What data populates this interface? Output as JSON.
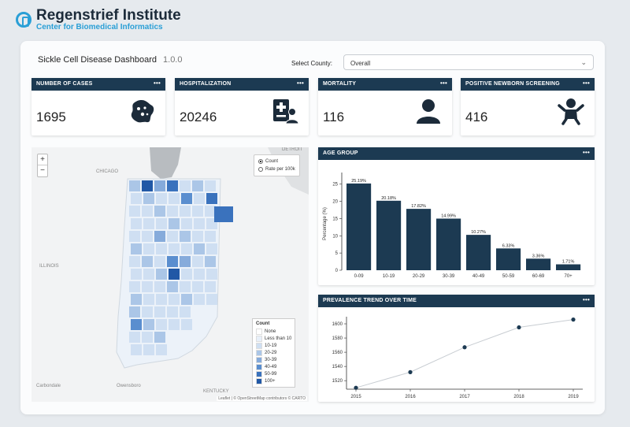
{
  "brand": {
    "title": "Regenstrief Institute",
    "subtitle": "Center for Biomedical Informatics",
    "accent": "#2a9fd6",
    "header_color": "#1c3a52"
  },
  "dashboard": {
    "title": "Sickle Cell Disease Dashboard",
    "version": "1.0.0"
  },
  "county": {
    "label": "Select County:",
    "value": "Overall"
  },
  "stats": [
    {
      "title": "NUMBER OF CASES",
      "value": "1695",
      "icon": "cell-icon"
    },
    {
      "title": "HOSPITALIZATION",
      "value": "20246",
      "icon": "hospital-bed-icon"
    },
    {
      "title": "MORTALITY",
      "value": "116",
      "icon": "person-icon"
    },
    {
      "title": "POSITIVE NEWBORN SCREENING",
      "value": "416",
      "icon": "baby-icon"
    }
  ],
  "menu_dots": "•••",
  "map": {
    "zoom_in": "+",
    "zoom_out": "−",
    "options": [
      "Count",
      "Rate per 100k"
    ],
    "selected": "Count",
    "legend_title": "Count",
    "legend": [
      {
        "label": "None",
        "color": "#ffffff"
      },
      {
        "label": "Less than 10",
        "color": "#e8f0fa"
      },
      {
        "label": "10-19",
        "color": "#cfdff2"
      },
      {
        "label": "20-29",
        "color": "#abc6e7"
      },
      {
        "label": "30-39",
        "color": "#86abdb"
      },
      {
        "label": "40-49",
        "color": "#5a8ecf"
      },
      {
        "label": "50-99",
        "color": "#3a72bd"
      },
      {
        "label": "100+",
        "color": "#2158a6"
      }
    ],
    "labels": {
      "chicago": "CHICAGO",
      "illinois": "ILLINOIS",
      "kentucky": "KENTUCKY",
      "detroit": "DETROIT",
      "carbondale": "Carbondale",
      "owensboro": "Owensboro"
    },
    "attribution": "Leaflet | © OpenStreetMap contributors © CARTO"
  },
  "chart_data": [
    {
      "type": "bar",
      "title": "AGE GROUP",
      "categories": [
        "0-09",
        "10-19",
        "20-29",
        "30-39",
        "40-49",
        "50-59",
        "60-69",
        "70+"
      ],
      "values": [
        25.19,
        20.18,
        17.82,
        14.99,
        10.27,
        6.33,
        3.36,
        1.71
      ],
      "labels": [
        "25.19%",
        "20.18%",
        "17.82%",
        "14.99%",
        "10.27%",
        "6.33%",
        "3.36%",
        "1.71%"
      ],
      "ylabel": "Percentage (%)",
      "xlabel": "",
      "ylim": [
        0,
        27
      ],
      "yticks": [
        0,
        5,
        10,
        15,
        20,
        25
      ],
      "color": "#1c3a52"
    },
    {
      "type": "line",
      "title": "PREVALENCE TREND OVER TIME",
      "x": [
        "2015",
        "2016",
        "2017",
        "2018",
        "2019"
      ],
      "values": [
        1510,
        1532,
        1567,
        1595,
        1606
      ],
      "ylim": [
        1508,
        1610
      ],
      "yticks": [
        1520,
        1540,
        1560,
        1580,
        1600
      ],
      "xlabel": "",
      "ylabel": "",
      "color": "#1c3a52"
    }
  ]
}
